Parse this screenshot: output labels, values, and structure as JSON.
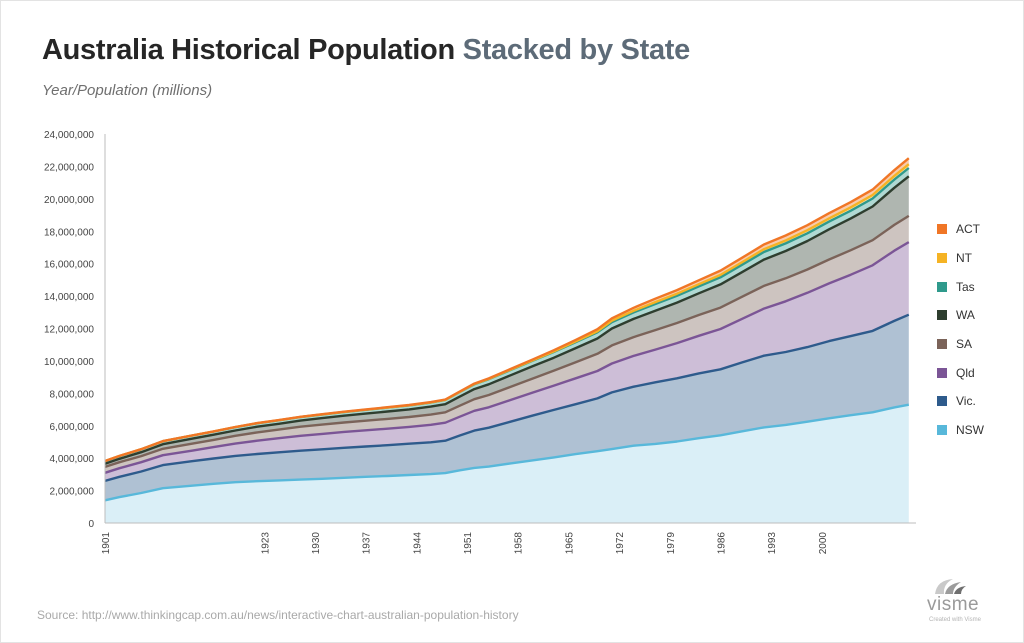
{
  "title": {
    "main": "Australia Historical Population",
    "highlight": "Stacked by State"
  },
  "subtitle": "Year/Population (millions)",
  "source": "Source: http://www.thinkingcap.com.au/news/interactive-chart-australian-population-history",
  "brand": {
    "name": "visme",
    "tagline": "Created with Visme"
  },
  "colors": {
    "ACT": "#f07626",
    "NT": "#f5b324",
    "Tas": "#2f9a8c",
    "WA": "#2e3e2f",
    "SA": "#7b6359",
    "Qld": "#7b5596",
    "Vic.": "#2e5b8c",
    "NSW": "#58b8da"
  },
  "legend": [
    "ACT",
    "NT",
    "Tas",
    "WA",
    "SA",
    "Qld",
    "Vic.",
    "NSW"
  ],
  "chart_data": {
    "type": "area",
    "stacked": true,
    "title": "Australia Historical Population Stacked by State",
    "xlabel": "",
    "ylabel": "Year/Population (millions)",
    "ylim": [
      0,
      24000000
    ],
    "yticks": [
      0,
      2000000,
      4000000,
      6000000,
      8000000,
      10000000,
      12000000,
      14000000,
      16000000,
      18000000,
      20000000,
      22000000,
      24000000
    ],
    "ytick_labels": [
      "0",
      "2,000,000",
      "4,000,000",
      "6,000,000",
      "8,000,000",
      "10,000,000",
      "12,000,000",
      "14,000,000",
      "16,000,000",
      "18,000,000",
      "20,000,000",
      "22,000,000",
      "24,000,000"
    ],
    "xlim": [
      1901,
      2013
    ],
    "xtick_labels": [
      "1901",
      "1923",
      "1930",
      "1937",
      "1944",
      "1951",
      "1958",
      "1965",
      "1972",
      "1979",
      "1986",
      "1993",
      "2000"
    ],
    "grid": false,
    "legend_position": "right",
    "x": [
      1901,
      1903,
      1906,
      1909,
      1913,
      1916,
      1919,
      1922,
      1925,
      1928,
      1931,
      1934,
      1937,
      1940,
      1943,
      1946,
      1948,
      1950,
      1952,
      1954,
      1957,
      1960,
      1963,
      1966,
      1969,
      1971,
      1974,
      1977,
      1980,
      1983,
      1986,
      1989,
      1992,
      1995,
      1998,
      2001,
      2004,
      2007,
      2010,
      2012
    ],
    "series": [
      {
        "name": "NSW",
        "values": [
          1400000,
          1600000,
          1850000,
          2150000,
          2300000,
          2420000,
          2520000,
          2580000,
          2630000,
          2680000,
          2730000,
          2790000,
          2850000,
          2900000,
          2960000,
          3020000,
          3080000,
          3250000,
          3400000,
          3480000,
          3680000,
          3860000,
          4050000,
          4250000,
          4430000,
          4560000,
          4770000,
          4880000,
          5030000,
          5230000,
          5410000,
          5660000,
          5900000,
          6050000,
          6250000,
          6460000,
          6650000,
          6830000,
          7130000,
          7300000
        ]
      },
      {
        "name": "Vic.",
        "values": [
          1200000,
          1250000,
          1330000,
          1420000,
          1510000,
          1560000,
          1620000,
          1680000,
          1730000,
          1780000,
          1820000,
          1850000,
          1870000,
          1900000,
          1930000,
          1960000,
          2000000,
          2150000,
          2300000,
          2400000,
          2570000,
          2760000,
          2930000,
          3080000,
          3260000,
          3500000,
          3640000,
          3800000,
          3900000,
          4000000,
          4070000,
          4250000,
          4420000,
          4500000,
          4600000,
          4760000,
          4880000,
          5020000,
          5340000,
          5550000
        ]
      },
      {
        "name": "Qld",
        "values": [
          500000,
          530000,
          570000,
          610000,
          650000,
          700000,
          760000,
          820000,
          870000,
          920000,
          950000,
          980000,
          1000000,
          1020000,
          1040000,
          1080000,
          1110000,
          1160000,
          1220000,
          1260000,
          1340000,
          1420000,
          1500000,
          1600000,
          1690000,
          1780000,
          1900000,
          2020000,
          2170000,
          2320000,
          2490000,
          2690000,
          2910000,
          3130000,
          3350000,
          3560000,
          3790000,
          4050000,
          4330000,
          4480000
        ]
      },
      {
        "name": "SA",
        "values": [
          360000,
          370000,
          380000,
          400000,
          430000,
          450000,
          480000,
          510000,
          530000,
          560000,
          570000,
          580000,
          590000,
          600000,
          610000,
          630000,
          640000,
          680000,
          720000,
          760000,
          810000,
          860000,
          920000,
          990000,
          1060000,
          1120000,
          1160000,
          1200000,
          1240000,
          1280000,
          1320000,
          1360000,
          1400000,
          1420000,
          1440000,
          1480000,
          1510000,
          1550000,
          1590000,
          1620000
        ]
      },
      {
        "name": "WA",
        "values": [
          190000,
          210000,
          240000,
          280000,
          310000,
          320000,
          330000,
          350000,
          360000,
          380000,
          400000,
          420000,
          440000,
          460000,
          470000,
          490000,
          500000,
          560000,
          620000,
          660000,
          710000,
          760000,
          800000,
          870000,
          940000,
          1040000,
          1120000,
          1200000,
          1260000,
          1340000,
          1430000,
          1520000,
          1620000,
          1680000,
          1760000,
          1860000,
          1960000,
          2080000,
          2290000,
          2440000
        ]
      },
      {
        "name": "Tas",
        "values": [
          170000,
          175000,
          180000,
          185000,
          190000,
          195000,
          200000,
          210000,
          215000,
          220000,
          225000,
          230000,
          235000,
          240000,
          245000,
          250000,
          260000,
          280000,
          300000,
          310000,
          330000,
          340000,
          355000,
          370000,
          385000,
          395000,
          405000,
          412000,
          420000,
          430000,
          440000,
          455000,
          470000,
          472000,
          472000,
          475000,
          480000,
          490000,
          505000,
          512000
        ]
      },
      {
        "name": "NT",
        "values": [
          5000,
          5000,
          4000,
          4000,
          4000,
          4000,
          5000,
          5000,
          5000,
          5000,
          5000,
          6000,
          7000,
          8000,
          9000,
          11000,
          12000,
          15000,
          18000,
          20000,
          23000,
          27000,
          35000,
          45000,
          65000,
          88000,
          100000,
          115000,
          125000,
          135000,
          150000,
          160000,
          170000,
          180000,
          190000,
          200000,
          205000,
          215000,
          228000,
          235000
        ]
      },
      {
        "name": "ACT",
        "values": [
          0,
          1000,
          1000,
          2000,
          3000,
          4000,
          6000,
          8000,
          9000,
          10000,
          11000,
          12000,
          13000,
          14000,
          15000,
          16000,
          17000,
          20000,
          25000,
          30000,
          38000,
          50000,
          70000,
          90000,
          125000,
          145000,
          180000,
          210000,
          225000,
          240000,
          260000,
          275000,
          295000,
          305000,
          310000,
          320000,
          325000,
          335000,
          355000,
          370000
        ]
      }
    ]
  }
}
